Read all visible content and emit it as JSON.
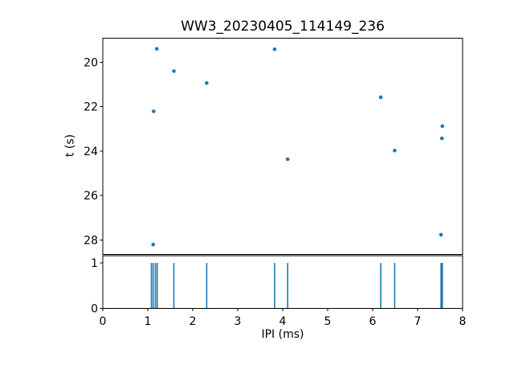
{
  "figure": {
    "background_color": "#ffffff",
    "text_color": "#000000",
    "accent_color": "#1f77b4"
  },
  "chart_data": [
    {
      "type": "scatter",
      "title": "WW3_20230405_114149_236",
      "xlabel": "IPI (ms)",
      "ylabel": "t (s)",
      "xlim": [
        0,
        8
      ],
      "ylim": [
        18.92,
        28.66
      ],
      "y_inverted": true,
      "grid": false,
      "legend": null,
      "x_ticks": [
        0,
        1,
        2,
        3,
        4,
        5,
        6,
        7,
        8
      ],
      "x_tick_labels_visible": false,
      "y_ticks": [
        20,
        22,
        24,
        26,
        28
      ],
      "marker_color": "#1f77b4",
      "points": [
        {
          "ipi_ms": 1.2,
          "t_s": 19.4
        },
        {
          "ipi_ms": 3.82,
          "t_s": 19.42
        },
        {
          "ipi_ms": 1.58,
          "t_s": 20.4
        },
        {
          "ipi_ms": 2.31,
          "t_s": 20.94
        },
        {
          "ipi_ms": 6.18,
          "t_s": 21.58
        },
        {
          "ipi_ms": 1.13,
          "t_s": 22.21
        },
        {
          "ipi_ms": 7.55,
          "t_s": 22.88
        },
        {
          "ipi_ms": 7.54,
          "t_s": 23.43
        },
        {
          "ipi_ms": 6.49,
          "t_s": 23.98
        },
        {
          "ipi_ms": 4.11,
          "t_s": 24.37
        },
        {
          "ipi_ms": 7.52,
          "t_s": 27.77
        },
        {
          "ipi_ms": 1.12,
          "t_s": 28.21
        }
      ]
    },
    {
      "type": "eventplot",
      "xlim": [
        0,
        8
      ],
      "ylim": [
        0,
        1.16
      ],
      "x_ticks": [
        0,
        1,
        2,
        3,
        4,
        5,
        6,
        7,
        8
      ],
      "x_tick_labels": [
        "0",
        "1",
        "2",
        "3",
        "4",
        "5",
        "6",
        "7",
        "8"
      ],
      "y_ticks": [
        0,
        1
      ],
      "y_tick_labels": [
        "0",
        "1"
      ],
      "line_color": "#1f77b4",
      "event_y_span": [
        0,
        1
      ],
      "events_ms": [
        1.08,
        1.12,
        1.17,
        1.21,
        1.58,
        2.31,
        3.82,
        4.11,
        6.18,
        6.49,
        7.52,
        7.54,
        7.55
      ]
    }
  ]
}
